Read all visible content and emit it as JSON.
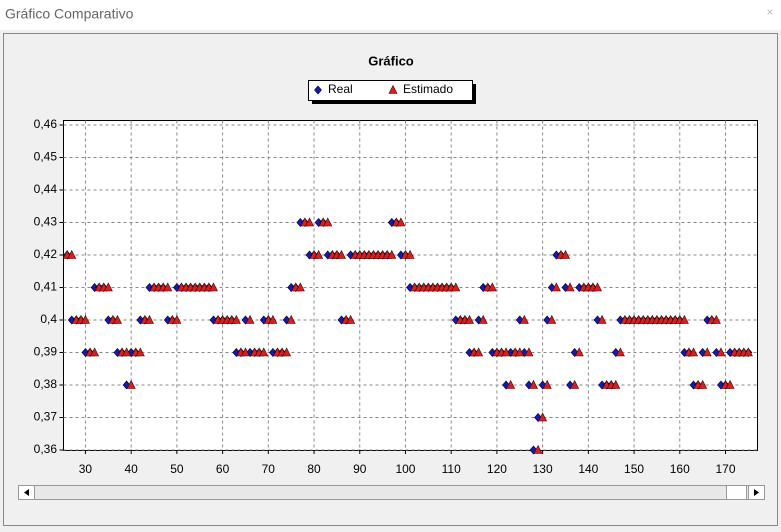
{
  "window": {
    "title": "Gráfico Comparativo"
  },
  "chart_data": {
    "type": "scatter",
    "title": "Gráfico",
    "x": [
      26,
      27,
      28,
      29,
      30,
      31,
      32,
      33,
      34,
      35,
      36,
      37,
      38,
      39,
      40,
      41,
      42,
      43,
      44,
      45,
      46,
      47,
      48,
      49,
      50,
      51,
      52,
      53,
      54,
      55,
      56,
      57,
      58,
      59,
      60,
      61,
      62,
      63,
      64,
      65,
      66,
      67,
      68,
      69,
      70,
      71,
      72,
      73,
      74,
      75,
      76,
      77,
      78,
      79,
      80,
      81,
      82,
      83,
      84,
      85,
      86,
      87,
      88,
      89,
      90,
      91,
      92,
      93,
      94,
      95,
      96,
      97,
      98,
      99,
      100,
      101,
      102,
      103,
      104,
      105,
      106,
      107,
      108,
      109,
      110,
      111,
      112,
      113,
      114,
      115,
      116,
      117,
      118,
      119,
      120,
      121,
      122,
      123,
      124,
      125,
      126,
      127,
      128,
      129,
      130,
      131,
      132,
      133,
      134,
      135,
      136,
      137,
      138,
      139,
      140,
      141,
      142,
      143,
      144,
      145,
      146,
      147,
      148,
      149,
      150,
      151,
      152,
      153,
      154,
      155,
      156,
      157,
      158,
      159,
      160,
      161,
      162,
      163,
      164,
      165,
      166,
      167,
      168,
      169,
      170,
      171,
      172,
      173,
      174,
      175
    ],
    "series": [
      {
        "name": "Real",
        "color": "#1a1aa8",
        "marker": "diamond",
        "values": [
          0.42,
          0.4,
          0.4,
          0.4,
          0.39,
          0.39,
          0.41,
          0.41,
          0.41,
          0.4,
          0.4,
          0.39,
          0.39,
          0.38,
          0.39,
          0.39,
          0.4,
          0.4,
          0.41,
          0.41,
          0.41,
          0.41,
          0.4,
          0.4,
          0.41,
          0.41,
          0.41,
          0.41,
          0.41,
          0.41,
          0.41,
          0.41,
          0.4,
          0.4,
          0.4,
          0.4,
          0.4,
          0.39,
          0.39,
          0.4,
          0.39,
          0.39,
          0.39,
          0.4,
          0.4,
          0.39,
          0.39,
          0.39,
          0.4,
          0.41,
          0.41,
          0.43,
          0.43,
          0.42,
          0.42,
          0.43,
          0.43,
          0.42,
          0.42,
          0.42,
          0.4,
          0.4,
          0.42,
          0.42,
          0.42,
          0.42,
          0.42,
          0.42,
          0.42,
          0.42,
          0.42,
          0.43,
          0.43,
          0.42,
          0.42,
          0.41,
          0.41,
          0.41,
          0.41,
          0.41,
          0.41,
          0.41,
          0.41,
          0.41,
          0.41,
          0.4,
          0.4,
          0.4,
          0.39,
          0.39,
          0.4,
          0.41,
          0.41,
          0.39,
          0.39,
          0.39,
          0.38,
          0.39,
          0.39,
          0.4,
          0.39,
          0.38,
          0.36,
          0.37,
          0.38,
          0.4,
          0.41,
          0.42,
          0.42,
          0.41,
          0.38,
          0.39,
          0.41,
          0.41,
          0.41,
          0.41,
          0.4,
          0.38,
          0.38,
          0.38,
          0.39,
          0.4,
          0.4,
          0.4,
          0.4,
          0.4,
          0.4,
          0.4,
          0.4,
          0.4,
          0.4,
          0.4,
          0.4,
          0.4,
          0.4,
          0.39,
          0.39,
          0.38,
          0.38,
          0.39,
          0.4,
          0.4,
          0.39,
          0.38,
          0.38,
          0.39,
          0.39,
          0.39,
          0.39,
          0.39
        ]
      },
      {
        "name": "Estimado",
        "color": "#d42020",
        "marker": "triangle",
        "values": [
          0.42,
          0.42,
          0.4,
          0.4,
          0.4,
          0.39,
          0.39,
          0.41,
          0.41,
          0.41,
          0.4,
          0.4,
          0.39,
          0.39,
          0.38,
          0.39,
          0.39,
          0.4,
          0.4,
          0.41,
          0.41,
          0.41,
          0.41,
          0.4,
          0.4,
          0.41,
          0.41,
          0.41,
          0.41,
          0.41,
          0.41,
          0.41,
          0.41,
          0.4,
          0.4,
          0.4,
          0.4,
          0.4,
          0.39,
          0.39,
          0.4,
          0.39,
          0.39,
          0.39,
          0.4,
          0.4,
          0.39,
          0.39,
          0.39,
          0.4,
          0.41,
          0.41,
          0.43,
          0.43,
          0.42,
          0.42,
          0.43,
          0.43,
          0.42,
          0.42,
          0.42,
          0.4,
          0.4,
          0.42,
          0.42,
          0.42,
          0.42,
          0.42,
          0.42,
          0.42,
          0.42,
          0.42,
          0.43,
          0.43,
          0.42,
          0.42,
          0.41,
          0.41,
          0.41,
          0.41,
          0.41,
          0.41,
          0.41,
          0.41,
          0.41,
          0.41,
          0.4,
          0.4,
          0.4,
          0.39,
          0.39,
          0.4,
          0.41,
          0.41,
          0.39,
          0.39,
          0.39,
          0.38,
          0.39,
          0.39,
          0.4,
          0.39,
          0.38,
          0.36,
          0.37,
          0.38,
          0.4,
          0.41,
          0.42,
          0.42,
          0.41,
          0.38,
          0.39,
          0.41,
          0.41,
          0.41,
          0.41,
          0.4,
          0.38,
          0.38,
          0.38,
          0.39,
          0.4,
          0.4,
          0.4,
          0.4,
          0.4,
          0.4,
          0.4,
          0.4,
          0.4,
          0.4,
          0.4,
          0.4,
          0.4,
          0.4,
          0.39,
          0.39,
          0.38,
          0.38,
          0.39,
          0.4,
          0.4,
          0.39,
          0.38,
          0.38,
          0.39,
          0.39,
          0.39,
          0.39
        ]
      }
    ],
    "xlim": [
      25.2,
      177
    ],
    "xticks": [
      30,
      40,
      50,
      60,
      70,
      80,
      90,
      100,
      110,
      120,
      130,
      140,
      150,
      160,
      170
    ],
    "ylim": [
      0.36,
      0.46
    ],
    "yticks": [
      {
        "value": 0.36,
        "label": "0,36"
      },
      {
        "value": 0.37,
        "label": "0,37"
      },
      {
        "value": 0.38,
        "label": "0,38"
      },
      {
        "value": 0.39,
        "label": "0,39"
      },
      {
        "value": 0.4,
        "label": "0,4"
      },
      {
        "value": 0.41,
        "label": "0,41"
      },
      {
        "value": 0.42,
        "label": "0,42"
      },
      {
        "value": 0.43,
        "label": "0,43"
      },
      {
        "value": 0.44,
        "label": "0,44"
      },
      {
        "value": 0.45,
        "label": "0,45"
      },
      {
        "value": 0.46,
        "label": "0,46"
      }
    ],
    "grid": true
  }
}
